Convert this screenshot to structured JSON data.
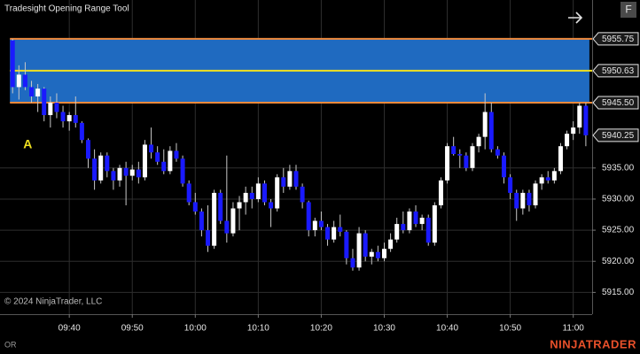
{
  "chart_data": {
    "type": "candlestick",
    "title": "Tradesight Opening Range Tool",
    "copyright": "© 2024 NinjaTrader, LLC",
    "footer_label": "OR",
    "brand": "NINJATRADER",
    "toolbar_button": "F",
    "annotation": {
      "text": "A",
      "color": "#f0e020"
    },
    "up_color": "#ffffff",
    "down_color": "#1a1aff",
    "wick_color": "#c8c8c8",
    "grid": true,
    "xlim": [
      "09:29",
      "11:03"
    ],
    "xticks": [
      "09:40",
      "09:50",
      "10:00",
      "10:10",
      "10:20",
      "10:30",
      "10:40",
      "10:50",
      "11:00"
    ],
    "ylim": [
      5911.5,
      5962
    ],
    "yticks": [
      {
        "value": 5915,
        "label": "5915.00"
      },
      {
        "value": 5920,
        "label": "5920.00"
      },
      {
        "value": 5925,
        "label": "5925.00"
      },
      {
        "value": 5930,
        "label": "5930.00"
      },
      {
        "value": 5935,
        "label": "5935.00"
      }
    ],
    "opening_range": {
      "fill": "#1f6ac0",
      "edge_color": "#f08a3c",
      "mid_color": "#f0e020",
      "high": {
        "value": 5955.75,
        "label": "5955.75"
      },
      "mid": {
        "value": 5950.63,
        "label": "5950.63"
      },
      "low": {
        "value": 5945.5,
        "label": "5945.50"
      }
    },
    "last_price": {
      "value": 5940.25,
      "label": "5940.25"
    },
    "x": [
      "09:31",
      "09:32",
      "09:33",
      "09:34",
      "09:35",
      "09:36",
      "09:37",
      "09:38",
      "09:39",
      "09:40",
      "09:41",
      "09:42",
      "09:43",
      "09:44",
      "09:45",
      "09:46",
      "09:47",
      "09:48",
      "09:49",
      "09:50",
      "09:51",
      "09:52",
      "09:53",
      "09:54",
      "09:55",
      "09:56",
      "09:57",
      "09:58",
      "09:59",
      "10:00",
      "10:01",
      "10:02",
      "10:03",
      "10:04",
      "10:05",
      "10:06",
      "10:07",
      "10:08",
      "10:09",
      "10:10",
      "10:11",
      "10:12",
      "10:13",
      "10:14",
      "10:15",
      "10:16",
      "10:17",
      "10:18",
      "10:19",
      "10:20",
      "10:21",
      "10:22",
      "10:23",
      "10:24",
      "10:25",
      "10:26",
      "10:27",
      "10:28",
      "10:29",
      "10:30",
      "10:31",
      "10:32",
      "10:33",
      "10:34",
      "10:35",
      "10:36",
      "10:37",
      "10:38",
      "10:39",
      "10:40",
      "10:41",
      "10:42",
      "10:43",
      "10:44",
      "10:45",
      "10:46",
      "10:47",
      "10:48",
      "10:49",
      "10:50",
      "10:51",
      "10:52",
      "10:53",
      "10:54",
      "10:55",
      "10:56",
      "10:57",
      "10:58",
      "10:59",
      "11:00",
      "11:01",
      "11:02"
    ],
    "open": [
      5955.5,
      5948,
      5950,
      5948,
      5946.5,
      5947.75,
      5943.5,
      5945.5,
      5944,
      5942.5,
      5943.5,
      5942.25,
      5939.5,
      5936.5,
      5933,
      5937,
      5934.5,
      5933,
      5935,
      5933.75,
      5934.75,
      5933.5,
      5938.75,
      5937.5,
      5936,
      5934.5,
      5937.75,
      5936.5,
      5932.5,
      5929.5,
      5928,
      5925,
      5922.5,
      5931,
      5926.5,
      5924.5,
      5928.5,
      5929.5,
      5931,
      5930,
      5932.5,
      5929.5,
      5928.5,
      5933.5,
      5932,
      5934.5,
      5932,
      5929.5,
      5925,
      5926.5,
      5925.5,
      5923.5,
      5925.5,
      5924.75,
      5920.5,
      5919,
      5924.5,
      5920.75,
      5921.5,
      5920.5,
      5922,
      5923.5,
      5926,
      5925,
      5928,
      5926,
      5927,
      5923,
      5929,
      5933,
      5938.5,
      5937.25,
      5937,
      5935,
      5938.5,
      5940,
      5944,
      5938,
      5937,
      5933.5,
      5931,
      5928.5,
      5931,
      5929,
      5932.5,
      5933.5,
      5933,
      5934.5,
      5938.5,
      5940.5,
      5941.5,
      5945
    ],
    "high": [
      5955.75,
      5951.5,
      5952,
      5949,
      5948.5,
      5948,
      5946.5,
      5947,
      5945,
      5944,
      5946.5,
      5942.5,
      5939.75,
      5938,
      5937.5,
      5937.5,
      5935,
      5935.5,
      5936,
      5935.5,
      5936,
      5939.5,
      5941.5,
      5938.5,
      5938,
      5938.5,
      5939,
      5937,
      5933,
      5931,
      5928.5,
      5929,
      5931.5,
      5931.5,
      5937,
      5929.5,
      5930.5,
      5932,
      5932,
      5933.5,
      5933,
      5930,
      5934,
      5935,
      5935.5,
      5935.5,
      5932.5,
      5929.75,
      5927,
      5928,
      5926,
      5926.5,
      5927.5,
      5925,
      5922,
      5925.5,
      5925,
      5922,
      5922.5,
      5923,
      5924.5,
      5927,
      5928,
      5928.5,
      5929,
      5927.5,
      5927.5,
      5929.5,
      5933.5,
      5939,
      5940,
      5938,
      5937.5,
      5939,
      5940.5,
      5947,
      5945.5,
      5938.5,
      5937.5,
      5934,
      5931.5,
      5931.5,
      5931.5,
      5933,
      5934,
      5934.5,
      5935,
      5939,
      5941,
      5942.5,
      5945.5,
      5945.5
    ],
    "low": [
      5947,
      5946,
      5947.5,
      5945.5,
      5944,
      5942.5,
      5941.5,
      5943,
      5941.5,
      5941,
      5941.5,
      5939,
      5935,
      5931.5,
      5932.5,
      5933.5,
      5931.5,
      5932,
      5929,
      5933,
      5932.5,
      5933,
      5936.5,
      5935.5,
      5934,
      5934,
      5936,
      5932,
      5929,
      5927.5,
      5924,
      5921.5,
      5922,
      5926,
      5923,
      5924,
      5925,
      5927.5,
      5928.5,
      5929.5,
      5929,
      5925.5,
      5928,
      5931,
      5931.5,
      5931.5,
      5928.5,
      5924,
      5924,
      5925,
      5922.5,
      5923,
      5924,
      5919.5,
      5918.5,
      5918.5,
      5920,
      5919.5,
      5920,
      5920,
      5921.5,
      5923,
      5924.5,
      5924.5,
      5925.5,
      5925,
      5922.5,
      5922.5,
      5928.5,
      5932.5,
      5937,
      5935,
      5934.5,
      5934.5,
      5937.5,
      5938,
      5937.5,
      5936.5,
      5932.5,
      5930,
      5926.5,
      5927.5,
      5928,
      5928.5,
      5931.5,
      5932.5,
      5932.5,
      5934,
      5938,
      5939.5,
      5940.5,
      5938.5
    ],
    "close": [
      5948,
      5950,
      5948,
      5946.5,
      5947.75,
      5943.5,
      5945.5,
      5944,
      5942.5,
      5943.5,
      5942.25,
      5939.5,
      5936.5,
      5933,
      5937,
      5934.5,
      5933,
      5935,
      5933.75,
      5934.75,
      5933.5,
      5938.75,
      5937.5,
      5936,
      5934.5,
      5937.75,
      5936.5,
      5932.5,
      5929.5,
      5928,
      5925,
      5922.5,
      5931,
      5926.5,
      5924.5,
      5928.5,
      5929.5,
      5931,
      5930,
      5932.5,
      5929.5,
      5928.5,
      5933.5,
      5932,
      5934.5,
      5932,
      5929.5,
      5925,
      5926.5,
      5925.5,
      5923.5,
      5925.5,
      5924.75,
      5920.5,
      5919,
      5924.5,
      5920.75,
      5921.5,
      5920.5,
      5922,
      5923.5,
      5926,
      5925,
      5928,
      5926,
      5927,
      5923,
      5929,
      5933,
      5938.5,
      5937.25,
      5937,
      5935,
      5938.5,
      5940,
      5944,
      5938,
      5937,
      5933.5,
      5931,
      5928.5,
      5931,
      5929,
      5932.5,
      5933.5,
      5933,
      5934.5,
      5938.5,
      5940.5,
      5941.5,
      5945,
      5940.25
    ]
  }
}
